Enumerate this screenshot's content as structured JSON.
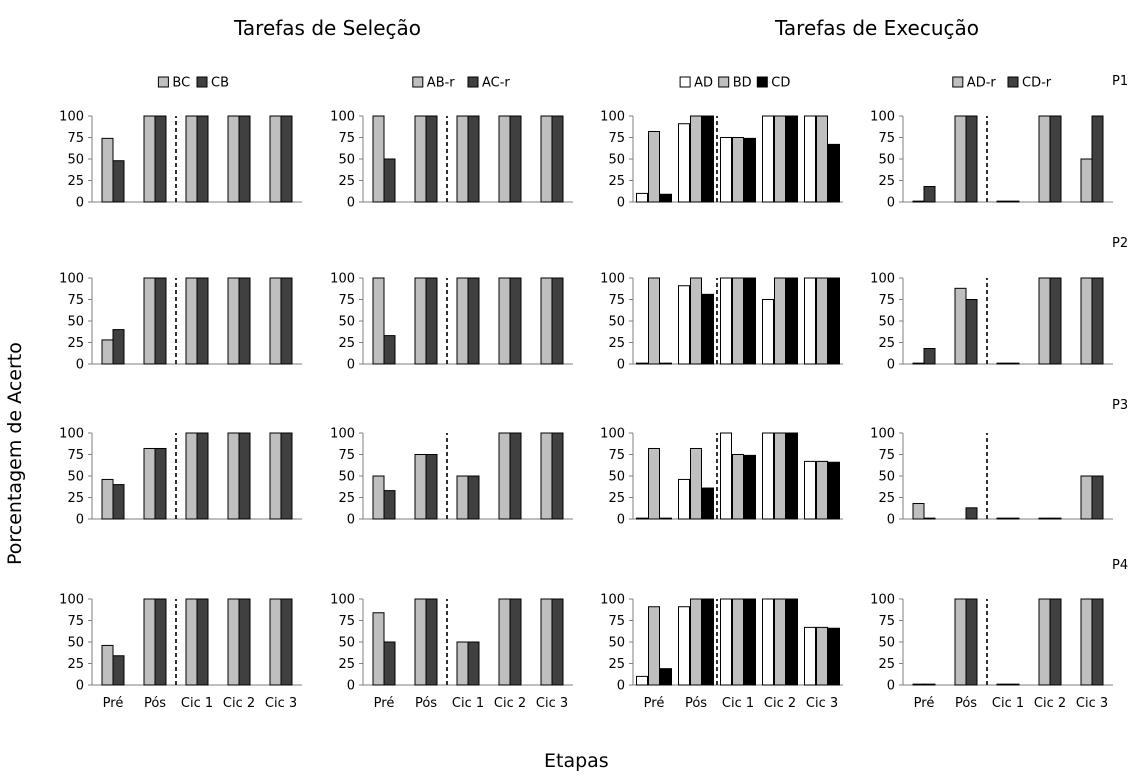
{
  "figure": {
    "title_selection": "Tarefas de Seleção",
    "title_execution": "Tarefas de Execução",
    "xlabel": "Etapas",
    "ylabel": "Porcentagem de Acerto",
    "participants": [
      "P1",
      "P2",
      "P3",
      "P4"
    ]
  },
  "colors": {
    "white": "#ffffff",
    "gray": "#bfbfbf",
    "dark": "#404040",
    "black": "#000000"
  },
  "chart_data": [
    {
      "type": "bar",
      "participant": "P1",
      "group": "Tarefas de Seleção",
      "categories": [
        "Pré",
        "Pós",
        "Cic 1",
        "Cic 2",
        "Cic 3"
      ],
      "yticks": [
        0,
        25,
        50,
        75,
        100
      ],
      "ylim": [
        0,
        100
      ],
      "divider_after_category": 1,
      "legend_position": "top",
      "series": [
        {
          "name": "BC",
          "color": "#bfbfbf",
          "values": [
            74,
            100,
            100,
            100,
            100
          ]
        },
        {
          "name": "CB",
          "color": "#404040",
          "values": [
            48,
            100,
            100,
            100,
            100
          ]
        }
      ]
    },
    {
      "type": "bar",
      "participant": "P1",
      "group": "Tarefas de Seleção",
      "categories": [
        "Pré",
        "Pós",
        "Cic 1",
        "Cic 2",
        "Cic 3"
      ],
      "yticks": [
        0,
        25,
        50,
        75,
        100
      ],
      "ylim": [
        0,
        100
      ],
      "divider_after_category": 1,
      "legend_position": "top",
      "series": [
        {
          "name": "AB-r",
          "color": "#bfbfbf",
          "values": [
            100,
            100,
            100,
            100,
            100
          ]
        },
        {
          "name": "AC-r",
          "color": "#404040",
          "values": [
            50,
            100,
            100,
            100,
            100
          ]
        }
      ]
    },
    {
      "type": "bar",
      "participant": "P1",
      "group": "Tarefas de Execução",
      "categories": [
        "Pré",
        "Pós",
        "Cic 1",
        "Cic 2",
        "Cic 3"
      ],
      "yticks": [
        0,
        25,
        50,
        75,
        100
      ],
      "ylim": [
        0,
        100
      ],
      "divider_after_category": 1,
      "legend_position": "top",
      "series": [
        {
          "name": "AD",
          "color": "#ffffff",
          "values": [
            10,
            91,
            75,
            100,
            100
          ]
        },
        {
          "name": "BD",
          "color": "#bfbfbf",
          "values": [
            82,
            100,
            75,
            100,
            100
          ]
        },
        {
          "name": "CD",
          "color": "#000000",
          "values": [
            9,
            100,
            74,
            100,
            67
          ]
        }
      ]
    },
    {
      "type": "bar",
      "participant": "P1",
      "group": "Tarefas de Execução",
      "categories": [
        "Pré",
        "Pós",
        "Cic 1",
        "Cic 2",
        "Cic 3"
      ],
      "yticks": [
        0,
        25,
        50,
        75,
        100
      ],
      "ylim": [
        0,
        100
      ],
      "divider_after_category": 1,
      "legend_position": "top",
      "series": [
        {
          "name": "AD-r",
          "color": "#bfbfbf",
          "values": [
            1,
            100,
            1,
            100,
            50
          ]
        },
        {
          "name": "CD-r",
          "color": "#404040",
          "values": [
            18,
            100,
            1,
            100,
            100
          ]
        }
      ]
    },
    {
      "type": "bar",
      "participant": "P2",
      "group": "Tarefas de Seleção",
      "categories": [
        "Pré",
        "Pós",
        "Cic 1",
        "Cic 2",
        "Cic 3"
      ],
      "yticks": [
        0,
        25,
        50,
        75,
        100
      ],
      "ylim": [
        0,
        100
      ],
      "divider_after_category": 1,
      "series": [
        {
          "name": "BC",
          "color": "#bfbfbf",
          "values": [
            28,
            100,
            100,
            100,
            100
          ]
        },
        {
          "name": "CB",
          "color": "#404040",
          "values": [
            40,
            100,
            100,
            100,
            100
          ]
        }
      ]
    },
    {
      "type": "bar",
      "participant": "P2",
      "group": "Tarefas de Seleção",
      "categories": [
        "Pré",
        "Pós",
        "Cic 1",
        "Cic 2",
        "Cic 3"
      ],
      "yticks": [
        0,
        25,
        50,
        75,
        100
      ],
      "ylim": [
        0,
        100
      ],
      "divider_after_category": 1,
      "series": [
        {
          "name": "AB-r",
          "color": "#bfbfbf",
          "values": [
            100,
            100,
            100,
            100,
            100
          ]
        },
        {
          "name": "AC-r",
          "color": "#404040",
          "values": [
            33,
            100,
            100,
            100,
            100
          ]
        }
      ]
    },
    {
      "type": "bar",
      "participant": "P2",
      "group": "Tarefas de Execução",
      "categories": [
        "Pré",
        "Pós",
        "Cic 1",
        "Cic 2",
        "Cic 3"
      ],
      "yticks": [
        0,
        25,
        50,
        75,
        100
      ],
      "ylim": [
        0,
        100
      ],
      "divider_after_category": 1,
      "series": [
        {
          "name": "AD",
          "color": "#ffffff",
          "values": [
            1,
            91,
            100,
            75,
            100
          ]
        },
        {
          "name": "BD",
          "color": "#bfbfbf",
          "values": [
            100,
            100,
            100,
            100,
            100
          ]
        },
        {
          "name": "CD",
          "color": "#000000",
          "values": [
            1,
            81,
            100,
            100,
            100
          ]
        }
      ]
    },
    {
      "type": "bar",
      "participant": "P2",
      "group": "Tarefas de Execução",
      "categories": [
        "Pré",
        "Pós",
        "Cic 1",
        "Cic 2",
        "Cic 3"
      ],
      "yticks": [
        0,
        25,
        50,
        75,
        100
      ],
      "ylim": [
        0,
        100
      ],
      "divider_after_category": 1,
      "series": [
        {
          "name": "AD-r",
          "color": "#bfbfbf",
          "values": [
            1,
            88,
            1,
            100,
            100
          ]
        },
        {
          "name": "CD-r",
          "color": "#404040",
          "values": [
            18,
            75,
            1,
            100,
            100
          ]
        }
      ]
    },
    {
      "type": "bar",
      "participant": "P3",
      "group": "Tarefas de Seleção",
      "categories": [
        "Pré",
        "Pós",
        "Cic 1",
        "Cic 2",
        "Cic 3"
      ],
      "yticks": [
        0,
        25,
        50,
        75,
        100
      ],
      "ylim": [
        0,
        100
      ],
      "divider_after_category": 1,
      "series": [
        {
          "name": "BC",
          "color": "#bfbfbf",
          "values": [
            46,
            82,
            100,
            100,
            100
          ]
        },
        {
          "name": "CB",
          "color": "#404040",
          "values": [
            40,
            82,
            100,
            100,
            100
          ]
        }
      ]
    },
    {
      "type": "bar",
      "participant": "P3",
      "group": "Tarefas de Seleção",
      "categories": [
        "Pré",
        "Pós",
        "Cic 1",
        "Cic 2",
        "Cic 3"
      ],
      "yticks": [
        0,
        25,
        50,
        75,
        100
      ],
      "ylim": [
        0,
        100
      ],
      "divider_after_category": 1,
      "series": [
        {
          "name": "AB-r",
          "color": "#bfbfbf",
          "values": [
            50,
            75,
            50,
            100,
            100
          ]
        },
        {
          "name": "AC-r",
          "color": "#404040",
          "values": [
            33,
            75,
            50,
            100,
            100
          ]
        }
      ]
    },
    {
      "type": "bar",
      "participant": "P3",
      "group": "Tarefas de Execução",
      "categories": [
        "Pré",
        "Pós",
        "Cic 1",
        "Cic 2",
        "Cic 3"
      ],
      "yticks": [
        0,
        25,
        50,
        75,
        100
      ],
      "ylim": [
        0,
        100
      ],
      "divider_after_category": 1,
      "series": [
        {
          "name": "AD",
          "color": "#ffffff",
          "values": [
            1,
            46,
            100,
            100,
            67
          ]
        },
        {
          "name": "BD",
          "color": "#bfbfbf",
          "values": [
            82,
            82,
            75,
            100,
            67
          ]
        },
        {
          "name": "CD",
          "color": "#000000",
          "values": [
            1,
            36,
            74,
            100,
            66
          ]
        }
      ]
    },
    {
      "type": "bar",
      "participant": "P3",
      "group": "Tarefas de Execução",
      "categories": [
        "Pré",
        "Pós",
        "Cic 1",
        "Cic 2",
        "Cic 3"
      ],
      "yticks": [
        0,
        25,
        50,
        75,
        100
      ],
      "ylim": [
        0,
        100
      ],
      "divider_after_category": 1,
      "series": [
        {
          "name": "AD-r",
          "color": "#bfbfbf",
          "values": [
            18,
            0,
            1,
            1,
            50
          ]
        },
        {
          "name": "CD-r",
          "color": "#404040",
          "values": [
            1,
            13,
            1,
            1,
            50
          ]
        }
      ]
    },
    {
      "type": "bar",
      "participant": "P4",
      "group": "Tarefas de Seleção",
      "categories": [
        "Pré",
        "Pós",
        "Cic 1",
        "Cic 2",
        "Cic 3"
      ],
      "yticks": [
        0,
        25,
        50,
        75,
        100
      ],
      "ylim": [
        0,
        100
      ],
      "divider_after_category": 1,
      "series": [
        {
          "name": "BC",
          "color": "#bfbfbf",
          "values": [
            46,
            100,
            100,
            100,
            100
          ]
        },
        {
          "name": "CB",
          "color": "#404040",
          "values": [
            34,
            100,
            100,
            100,
            100
          ]
        }
      ]
    },
    {
      "type": "bar",
      "participant": "P4",
      "group": "Tarefas de Seleção",
      "categories": [
        "Pré",
        "Pós",
        "Cic 1",
        "Cic 2",
        "Cic 3"
      ],
      "yticks": [
        0,
        25,
        50,
        75,
        100
      ],
      "ylim": [
        0,
        100
      ],
      "divider_after_category": 1,
      "series": [
        {
          "name": "AB-r",
          "color": "#bfbfbf",
          "values": [
            84,
            100,
            50,
            100,
            100
          ]
        },
        {
          "name": "AC-r",
          "color": "#404040",
          "values": [
            50,
            100,
            50,
            100,
            100
          ]
        }
      ]
    },
    {
      "type": "bar",
      "participant": "P4",
      "group": "Tarefas de Execução",
      "categories": [
        "Pré",
        "Pós",
        "Cic 1",
        "Cic 2",
        "Cic 3"
      ],
      "yticks": [
        0,
        25,
        50,
        75,
        100
      ],
      "ylim": [
        0,
        100
      ],
      "divider_after_category": 1,
      "series": [
        {
          "name": "AD",
          "color": "#ffffff",
          "values": [
            10,
            91,
            100,
            100,
            67
          ]
        },
        {
          "name": "BD",
          "color": "#bfbfbf",
          "values": [
            91,
            100,
            100,
            100,
            67
          ]
        },
        {
          "name": "CD",
          "color": "#000000",
          "values": [
            19,
            100,
            100,
            100,
            66
          ]
        }
      ]
    },
    {
      "type": "bar",
      "participant": "P4",
      "group": "Tarefas de Execução",
      "categories": [
        "Pré",
        "Pós",
        "Cic 1",
        "Cic 2",
        "Cic 3"
      ],
      "yticks": [
        0,
        25,
        50,
        75,
        100
      ],
      "ylim": [
        0,
        100
      ],
      "divider_after_category": 1,
      "series": [
        {
          "name": "AD-r",
          "color": "#bfbfbf",
          "values": [
            1,
            100,
            1,
            100,
            100
          ]
        },
        {
          "name": "CD-r",
          "color": "#404040",
          "values": [
            1,
            100,
            1,
            100,
            100
          ]
        }
      ]
    }
  ]
}
